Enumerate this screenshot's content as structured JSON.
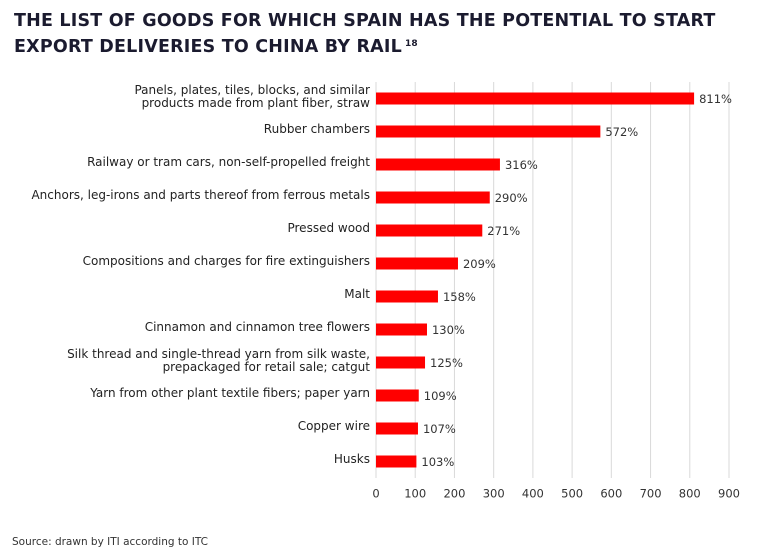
{
  "chart_data": {
    "type": "hbar",
    "title": "THE LIST OF GOODS FOR WHICH SPAIN HAS THE POTENTIAL TO START EXPORT DELIVERIES TO CHINA BY RAIL",
    "title_superscript": "18",
    "categories": [
      "Panels, plates, tiles, blocks, and similar\nproducts made from plant fiber, straw",
      "Rubber chambers",
      "Railway or tram cars, non-self-propelled freight",
      "Anchors, leg-irons and parts thereof from ferrous metals",
      "Pressed wood",
      "Compositions and charges for fire extinguishers",
      "Malt",
      "Cinnamon and cinnamon tree flowers",
      "Silk thread and single-thread yarn from silk waste,\nprepackaged for retail sale; catgut",
      "Yarn from other plant textile fibers; paper yarn",
      "Copper wire",
      "Husks"
    ],
    "values": [
      811,
      572,
      316,
      290,
      271,
      209,
      158,
      130,
      125,
      109,
      107,
      103
    ],
    "value_labels": [
      "811%",
      "572%",
      "316%",
      "290%",
      "271%",
      "209%",
      "158%",
      "130%",
      "125%",
      "109%",
      "107%",
      "103%"
    ],
    "color": "#ff0000",
    "xlim": [
      0,
      900
    ],
    "xticks": [
      0,
      100,
      200,
      300,
      400,
      500,
      600,
      700,
      800,
      900
    ],
    "grid": true,
    "source": "Source: drawn by ITI according to ITC"
  }
}
